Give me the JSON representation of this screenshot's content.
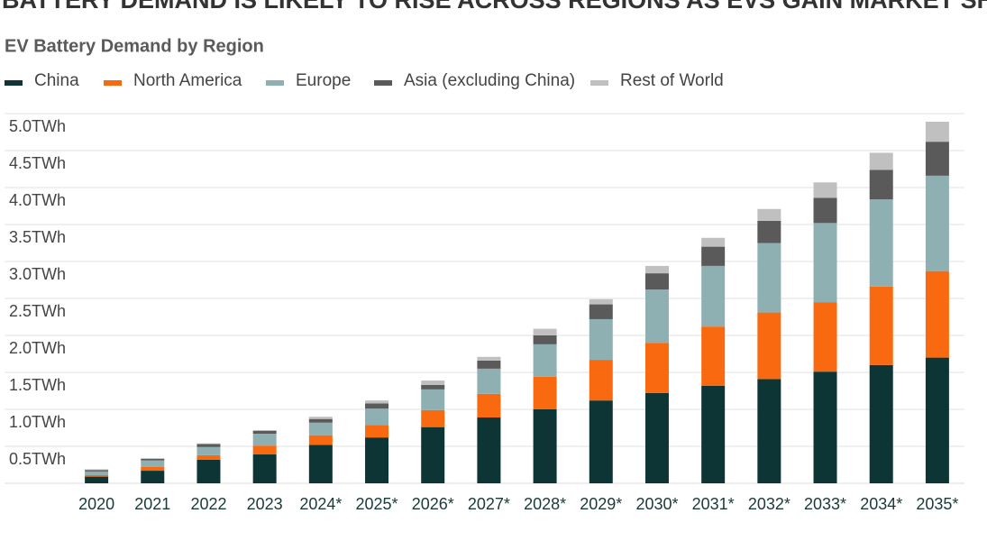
{
  "chart_data": {
    "type": "stacked-bar",
    "title": "BATTERY DEMAND IS LIKELY TO RISE ACROSS REGIONS AS EVS GAIN MARKET SHARE",
    "subtitle": "EV Battery Demand by Region",
    "categories": [
      "2020",
      "2021",
      "2022",
      "2023",
      "2024*",
      "2025*",
      "2026*",
      "2027*",
      "2028*",
      "2029*",
      "2030*",
      "2031*",
      "2032*",
      "2033*",
      "2034*",
      "2035*"
    ],
    "series": [
      {
        "name": "China",
        "color": "#0d3535",
        "values": [
          0.09,
          0.17,
          0.32,
          0.39,
          0.52,
          0.62,
          0.76,
          0.89,
          1.0,
          1.12,
          1.22,
          1.32,
          1.41,
          1.51,
          1.6,
          1.7
        ]
      },
      {
        "name": "North America",
        "color": "#f96a10",
        "values": [
          0.02,
          0.05,
          0.06,
          0.12,
          0.13,
          0.17,
          0.23,
          0.32,
          0.44,
          0.55,
          0.68,
          0.8,
          0.9,
          0.94,
          1.06,
          1.17
        ]
      },
      {
        "name": "Europe",
        "color": "#8fb0b2",
        "values": [
          0.05,
          0.09,
          0.11,
          0.16,
          0.17,
          0.22,
          0.28,
          0.34,
          0.44,
          0.55,
          0.72,
          0.82,
          0.94,
          1.07,
          1.18,
          1.29
        ]
      },
      {
        "name": "Asia (excluding China)",
        "color": "#5a5a5a",
        "values": [
          0.02,
          0.02,
          0.04,
          0.04,
          0.05,
          0.07,
          0.06,
          0.11,
          0.12,
          0.2,
          0.22,
          0.26,
          0.3,
          0.34,
          0.4,
          0.46
        ]
      },
      {
        "name": "Rest of World",
        "color": "#c0c0c0",
        "values": [
          0.01,
          0.01,
          0.01,
          0.01,
          0.03,
          0.04,
          0.06,
          0.05,
          0.09,
          0.07,
          0.1,
          0.12,
          0.16,
          0.21,
          0.23,
          0.27
        ]
      }
    ],
    "ylim": [
      0,
      5
    ],
    "yticks": [
      {
        "value": 0.5,
        "label": "0.5TWh"
      },
      {
        "value": 1.0,
        "label": "1.0TWh"
      },
      {
        "value": 1.5,
        "label": "1.5TWh"
      },
      {
        "value": 2.0,
        "label": "2.0TWh"
      },
      {
        "value": 2.5,
        "label": "2.5TWh"
      },
      {
        "value": 3.0,
        "label": "3.0TWh"
      },
      {
        "value": 3.5,
        "label": "3.5TWh"
      },
      {
        "value": 4.0,
        "label": "4.0TWh"
      },
      {
        "value": 4.5,
        "label": "4.5TWh"
      },
      {
        "value": 5.0,
        "label": "5.0TWh"
      }
    ],
    "grid": true
  }
}
